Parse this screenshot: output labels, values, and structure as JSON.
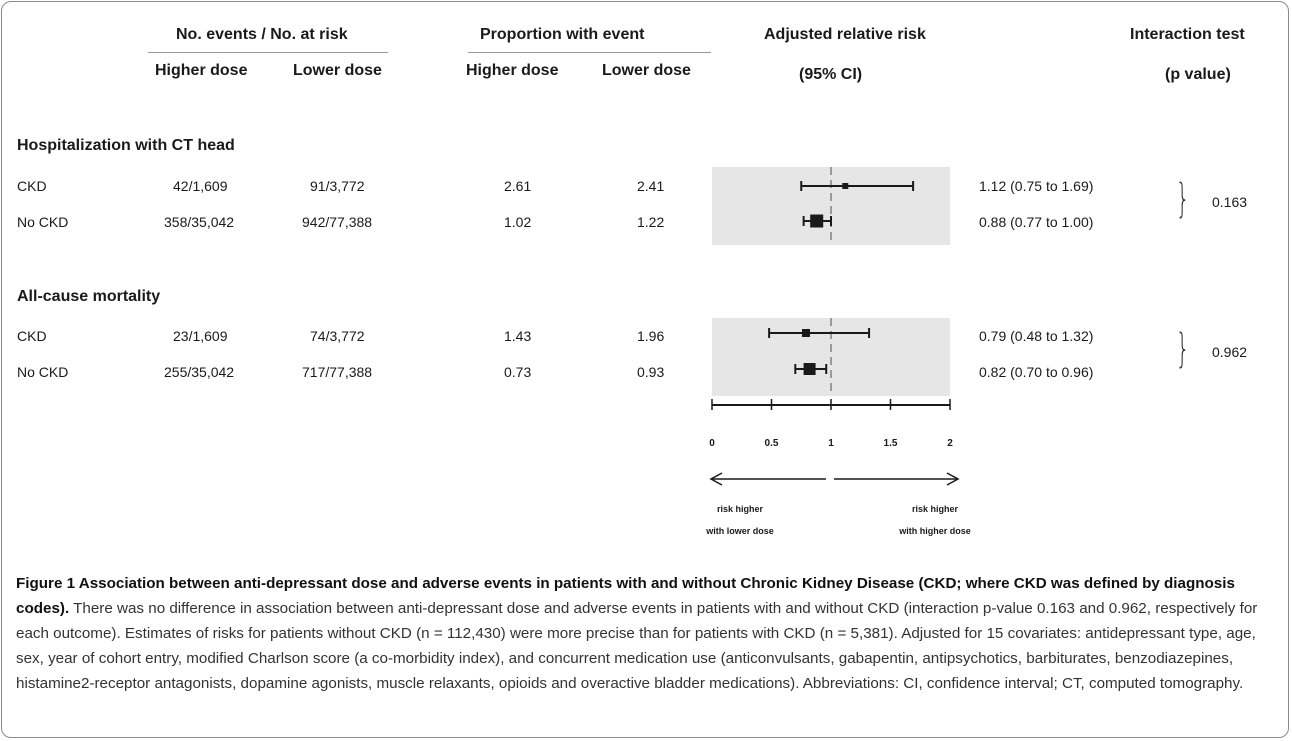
{
  "headers": {
    "events_group": "No. events / No. at risk",
    "proportion_group": "Proportion with event",
    "rr": "Adjusted relative risk",
    "rr_sub": "(95% CI)",
    "interaction": "Interaction test",
    "interaction_sub": "(p value)",
    "higher_dose": "Higher dose",
    "lower_dose": "Lower dose"
  },
  "outcomes": [
    {
      "title": "Hospitalization with CT head",
      "p_value": "0.163",
      "rows": [
        {
          "group": "CKD",
          "events_higher": "42/1,609",
          "events_lower": "91/3,772",
          "prop_higher": "2.61",
          "prop_lower": "2.41",
          "rr_text": "1.12 (0.75 to 1.69)"
        },
        {
          "group": "No CKD",
          "events_higher": "358/35,042",
          "events_lower": "942/77,388",
          "prop_higher": "1.02",
          "prop_lower": "1.22",
          "rr_text": "0.88 (0.77 to 1.00)"
        }
      ]
    },
    {
      "title": "All-cause mortality",
      "p_value": "0.962",
      "rows": [
        {
          "group": "CKD",
          "events_higher": "23/1,609",
          "events_lower": "74/3,772",
          "prop_higher": "1.43",
          "prop_lower": "1.96",
          "rr_text": "0.79 (0.48 to 1.32)"
        },
        {
          "group": "No CKD",
          "events_higher": "255/35,042",
          "events_lower": "717/77,388",
          "prop_higher": "0.73",
          "prop_lower": "0.93",
          "rr_text": "0.82 (0.70 to 0.96)"
        }
      ]
    }
  ],
  "chart_data": {
    "type": "forest",
    "xlim": [
      0,
      2
    ],
    "xticks": [
      "0",
      "0.5",
      "1",
      "1.5",
      "2"
    ],
    "reference_line": 1,
    "series": [
      {
        "outcome": "Hospitalization with CT head",
        "group": "CKD",
        "estimate": 1.12,
        "lower": 0.75,
        "upper": 1.69
      },
      {
        "outcome": "Hospitalization with CT head",
        "group": "No CKD",
        "estimate": 0.88,
        "lower": 0.77,
        "upper": 1.0
      },
      {
        "outcome": "All-cause mortality",
        "group": "CKD",
        "estimate": 0.79,
        "lower": 0.48,
        "upper": 1.32
      },
      {
        "outcome": "All-cause mortality",
        "group": "No CKD",
        "estimate": 0.82,
        "lower": 0.7,
        "upper": 0.96
      }
    ],
    "arrow_left_label": [
      "risk higher",
      "with lower dose"
    ],
    "arrow_right_label": [
      "risk higher",
      "with higher dose"
    ],
    "panel_color": "#e6e6e6"
  },
  "caption": {
    "title": "Figure 1 Association between anti-depressant dose and adverse events in patients with and without Chronic Kidney Disease (CKD; where CKD was defined by diagnosis codes).",
    "body": "There was no difference in association between anti-depressant dose and adverse events in patients with and without CKD (interaction p-value 0.163 and 0.962, respectively for each outcome). Estimates of risks for patients without CKD (n = 112,430) were more precise than for patients with CKD (n = 5,381). Adjusted for 15 covariates: antidepressant type, age, sex, year of cohort entry, modified Charlson score (a co-morbidity index), and concurrent medication use (anticonvulsants, gabapentin, antipsychotics, barbiturates, benzodiazepines, histamine2-receptor antagonists, dopamine agonists, muscle relaxants, opioids and overactive bladder medications). Abbreviations: CI, confidence interval; CT, computed tomography."
  }
}
